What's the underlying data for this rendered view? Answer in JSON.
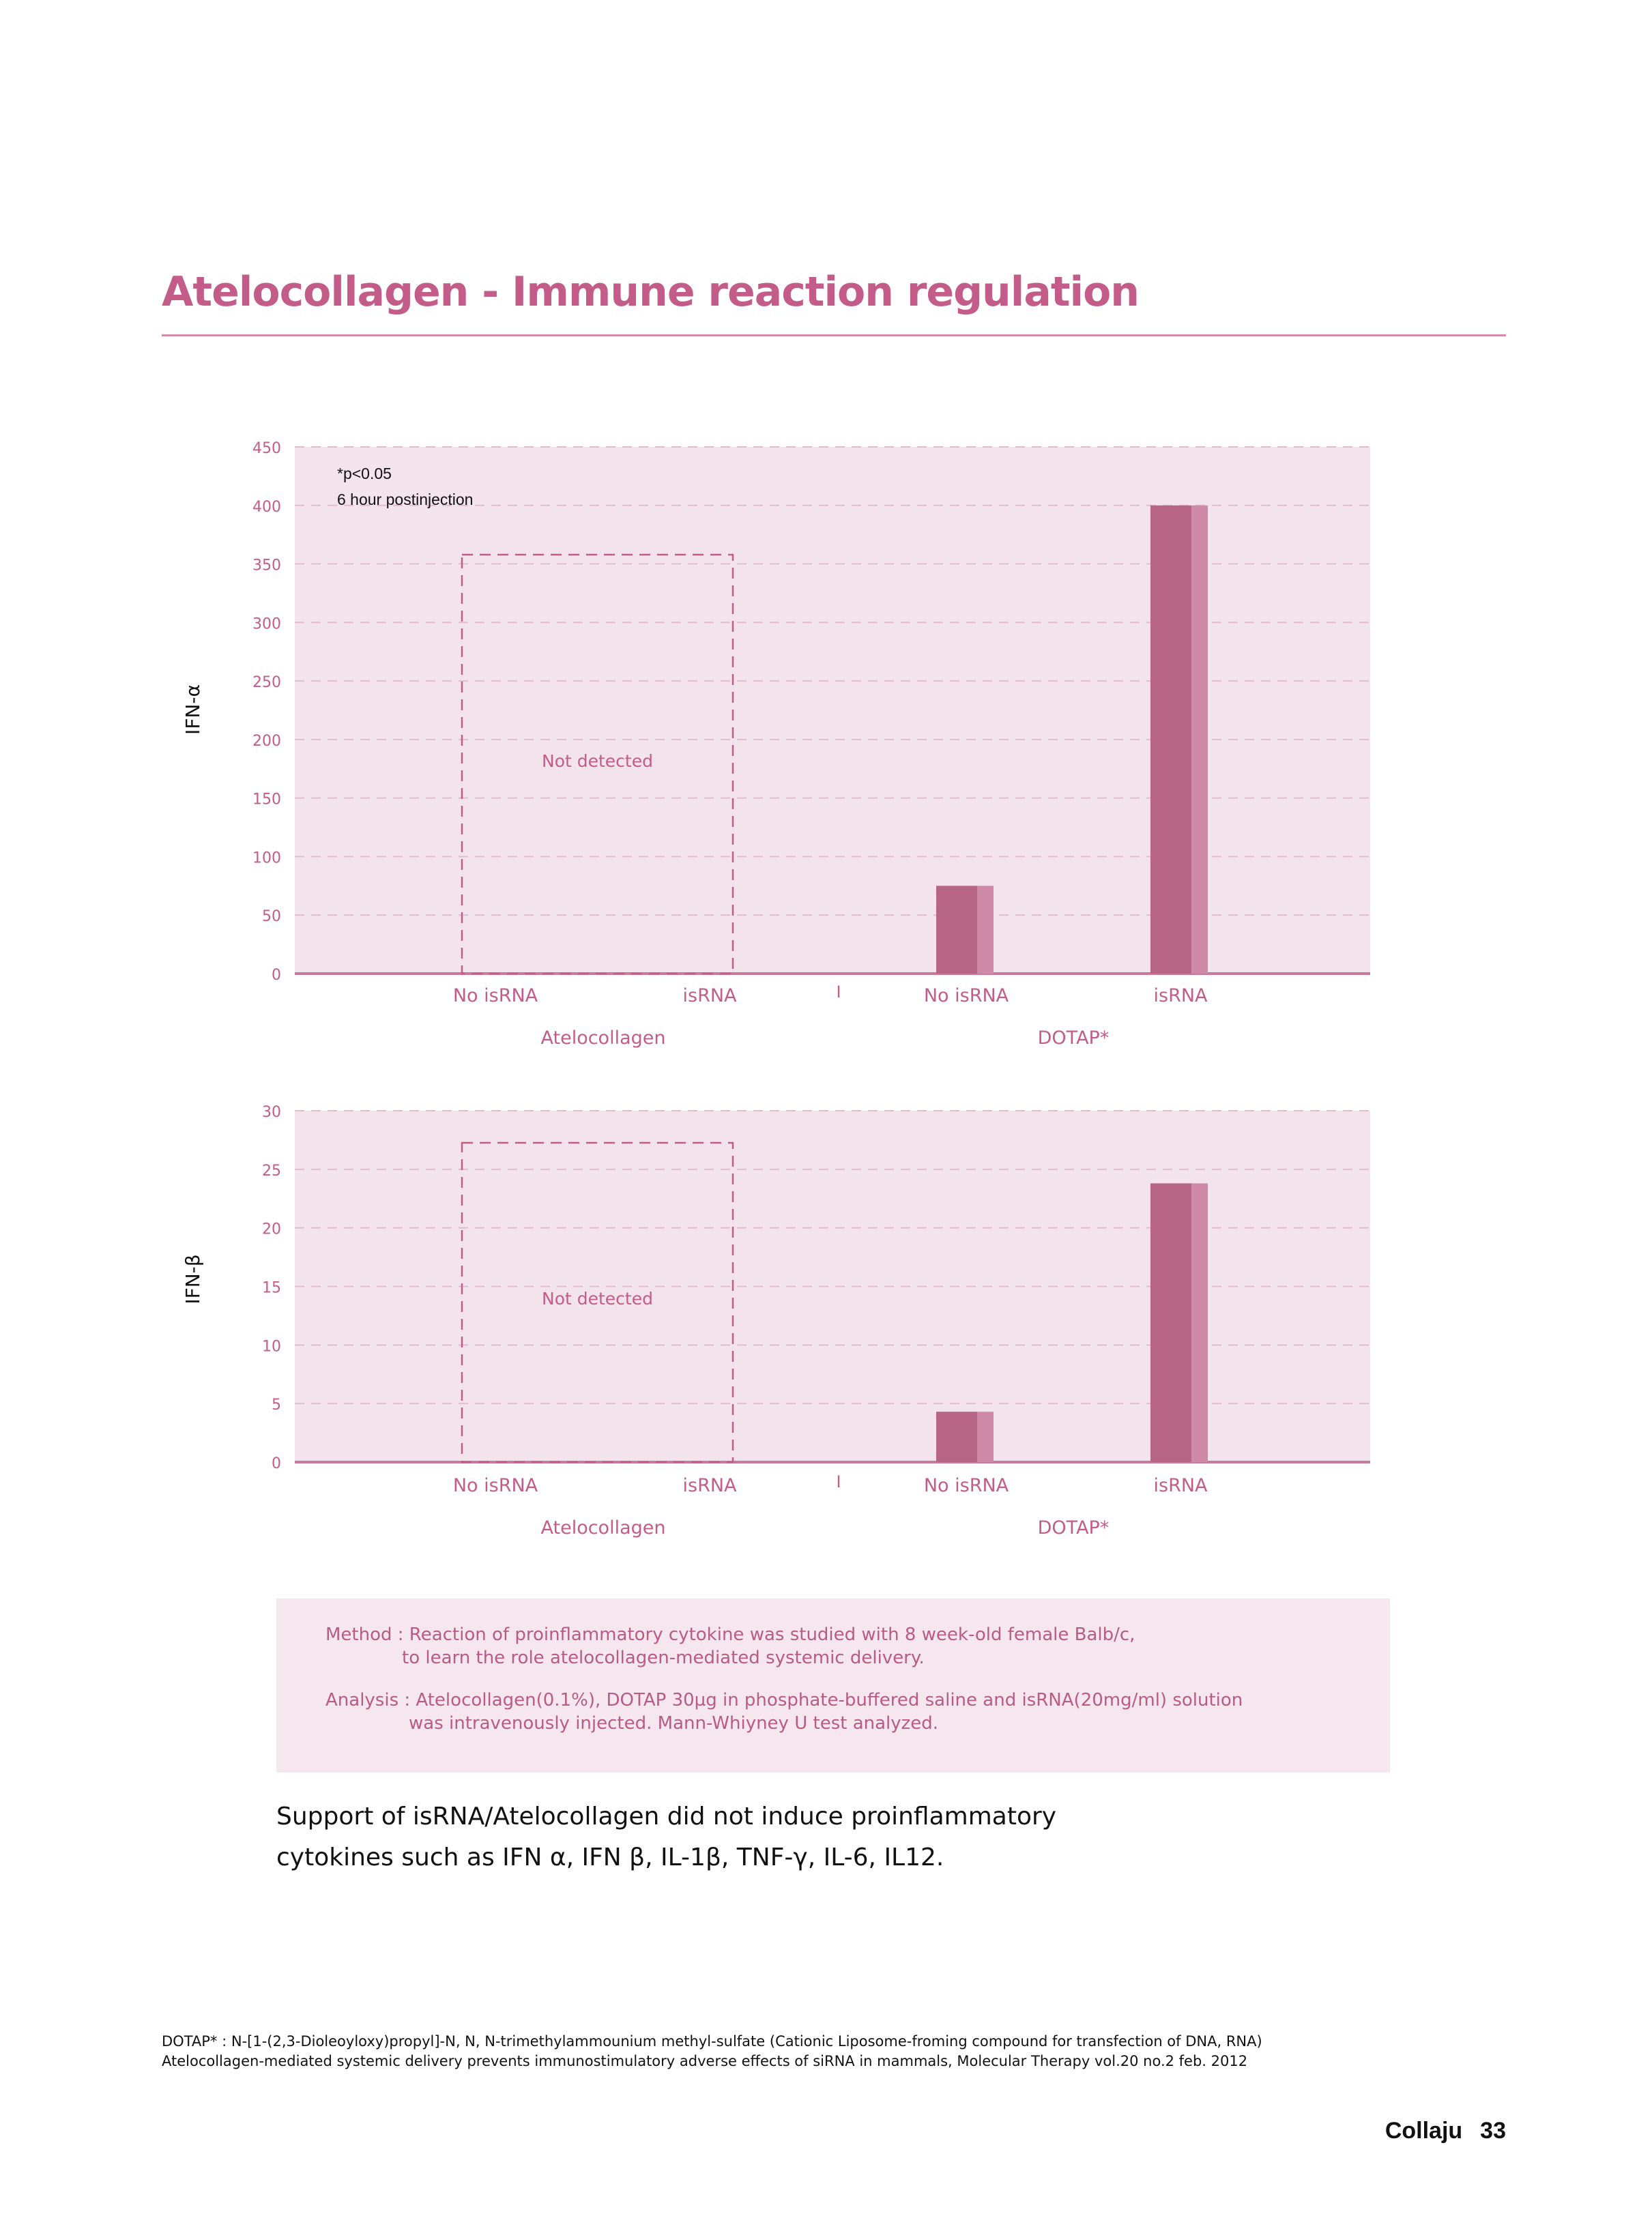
{
  "header": {
    "title": "Atelocollagen - Immune reaction regulation"
  },
  "chart_data": [
    {
      "type": "bar",
      "ylabel": "IFN-α",
      "ylim": [
        0,
        450
      ],
      "yticks": [
        0,
        50,
        100,
        150,
        200,
        250,
        300,
        350,
        400,
        450
      ],
      "grid": true,
      "categories": [
        "No isRNA",
        "isRNA",
        "No isRNA",
        "isRNA"
      ],
      "groups": [
        "Atelocollagen",
        "DOTAP*"
      ],
      "values": [
        null,
        null,
        75,
        400
      ],
      "annotation_lines": [
        "*p<0.05",
        "6 hour postinjection"
      ],
      "not_detected_label": "Not detected",
      "separator": "I"
    },
    {
      "type": "bar",
      "ylabel": "IFN-β",
      "ylim": [
        0,
        30
      ],
      "yticks": [
        0,
        5,
        10,
        15,
        20,
        25,
        30
      ],
      "grid": true,
      "categories": [
        "No isRNA",
        "isRNA",
        "No isRNA",
        "isRNA"
      ],
      "groups": [
        "Atelocollagen",
        "DOTAP*"
      ],
      "values": [
        null,
        null,
        4.3,
        23.8
      ],
      "not_detected_label": "Not detected",
      "separator": "I"
    }
  ],
  "method": {
    "line1": "Method : Reaction of proinflammatory cytokine was studied with 8 week-old female Balb/c,",
    "line2": "to learn the role atelocollagen-mediated systemic delivery.",
    "line3": "Analysis : Atelocollagen(0.1%), DOTAP 30µg in phosphate-buffered saline and isRNA(20mg/ml) solution",
    "line4": "was intravenously injected. Mann-Whiyney U test analyzed."
  },
  "support": {
    "line1": "Support of isRNA/Atelocollagen did not induce proinflammatory",
    "line2": "cytokines such as IFN α, IFN β, IL-1β, TNF-γ, IL-6, IL12."
  },
  "footnotes": {
    "line1": "DOTAP* : N-[1-(2,3-Dioleoyloxy)propyl]-N, N, N-trimethylammounium methyl-sulfate (Cationic Liposome-froming compound for transfection of DNA, RNA)",
    "line2": "Atelocollagen-mediated systemic delivery prevents immunostimulatory adverse effects of siRNA in mammals, Molecular Therapy vol.20 no.2 feb. 2012"
  },
  "footer": {
    "brand": "Collaju",
    "page": "33"
  },
  "colors": {
    "accent": "#c35c88",
    "bar": "#b66684",
    "bar_shade": "#cf8aa7",
    "plot_bg": "#f3e4ec"
  }
}
